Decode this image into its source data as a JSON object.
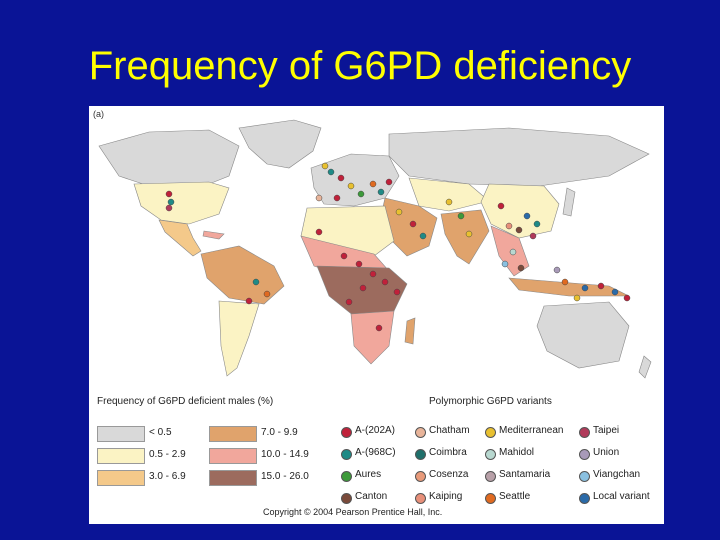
{
  "title": "Frequency of G6PD deficiency",
  "panel_label": "(a)",
  "frequency_legend": {
    "title": "Frequency of G6PD deficient males (%)",
    "bins": [
      {
        "label": "< 0.5",
        "color": "#d9d9d9"
      },
      {
        "label": "0.5 - 2.9",
        "color": "#fbf3c4"
      },
      {
        "label": "3.0 - 6.9",
        "color": "#f4c98a"
      },
      {
        "label": "7.0 - 9.9",
        "color": "#e0a36c"
      },
      {
        "label": "10.0 - 14.9",
        "color": "#f1a79c"
      },
      {
        "label": "15.0 - 26.0",
        "color": "#9c6b5e"
      }
    ]
  },
  "variant_legend": {
    "title": "Polymorphic G6PD variants",
    "variants": [
      {
        "label": "A-(202A)",
        "color": "#c0213a"
      },
      {
        "label": "A-(968C)",
        "color": "#1f8a86"
      },
      {
        "label": "Aures",
        "color": "#3d9a3a"
      },
      {
        "label": "Canton",
        "color": "#7a4a3a"
      },
      {
        "label": "Chatham",
        "color": "#e8b49a"
      },
      {
        "label": "Coimbra",
        "color": "#1f6f6a"
      },
      {
        "label": "Cosenza",
        "color": "#e89a7a"
      },
      {
        "label": "Kaiping",
        "color": "#e8907a"
      },
      {
        "label": "Mediterranean",
        "color": "#e8c030"
      },
      {
        "label": "Mahidol",
        "color": "#b8d8d0"
      },
      {
        "label": "Santamaria",
        "color": "#b8a0a8"
      },
      {
        "label": "Seattle",
        "color": "#e06a20"
      },
      {
        "label": "Taipei",
        "color": "#b03a5a"
      },
      {
        "label": "Union",
        "color": "#a89ab8"
      },
      {
        "label": "Viangchan",
        "color": "#8ac0e0"
      },
      {
        "label": "Local variant",
        "color": "#2a6aa8"
      }
    ]
  },
  "copyright": "Copyright © 2004 Pearson Prentice Hall, Inc."
}
